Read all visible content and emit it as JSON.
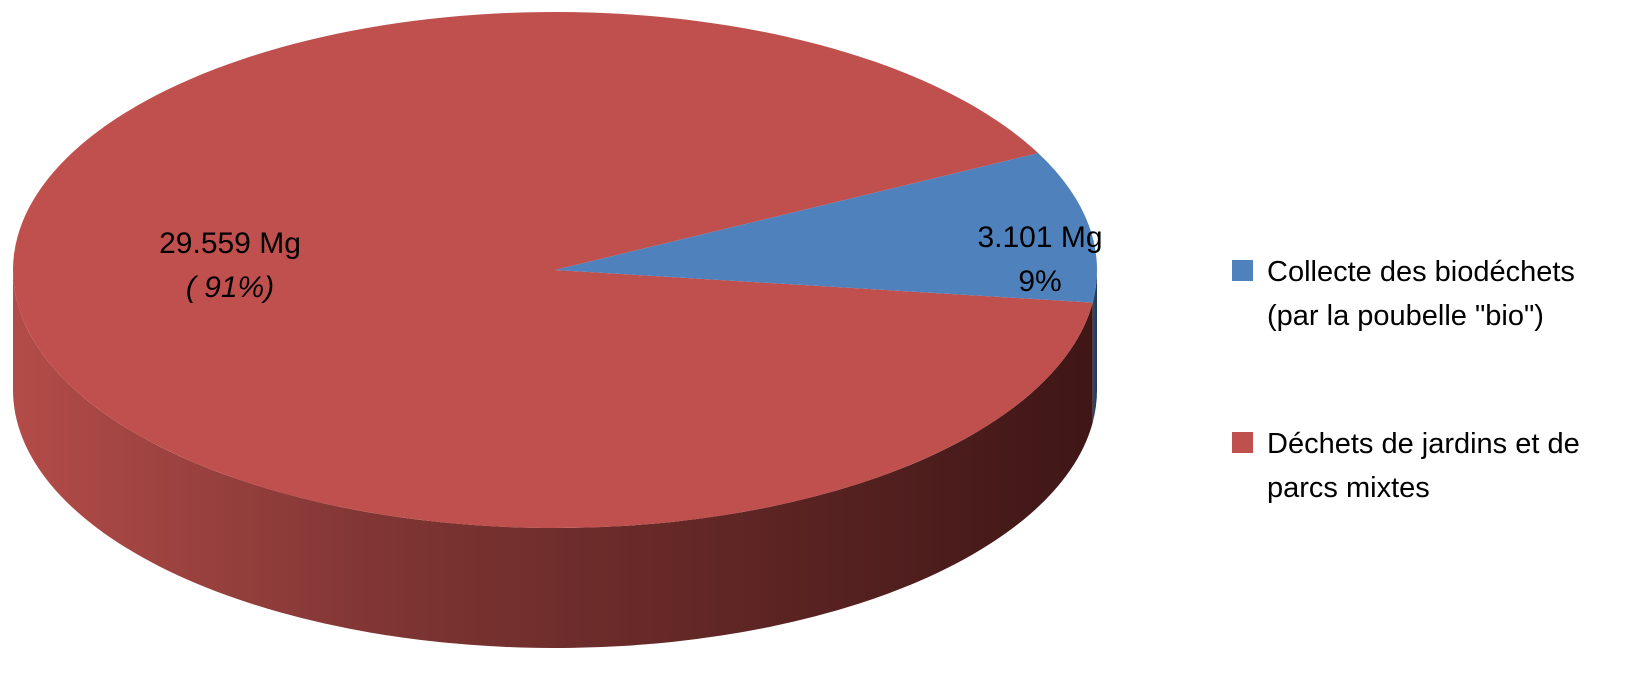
{
  "chart_data": {
    "type": "pie",
    "three_d": true,
    "legend_position": "right",
    "colors": [
      "#4F81BD",
      "#C0504D"
    ],
    "series": [
      {
        "categories": [
          "Collecte des biodéchets (par la poubelle \"bio\")",
          "Déchets de jardins et de parcs mixtes"
        ],
        "values": [
          3101,
          29559
        ],
        "unit": "Mg"
      }
    ],
    "data_labels": [
      {
        "value_text": "3.101 Mg",
        "percent_text": "9%"
      },
      {
        "value_text": "29.559 Mg",
        "percent_text": "( 91%)"
      }
    ],
    "legend": [
      {
        "line1": "Collecte des biodéchets",
        "line2": "(par la poubelle \"bio\")",
        "color": "#4F81BD"
      },
      {
        "line1": "Déchets de jardins et de",
        "line2": "parcs mixtes",
        "color": "#C0504D"
      }
    ]
  }
}
